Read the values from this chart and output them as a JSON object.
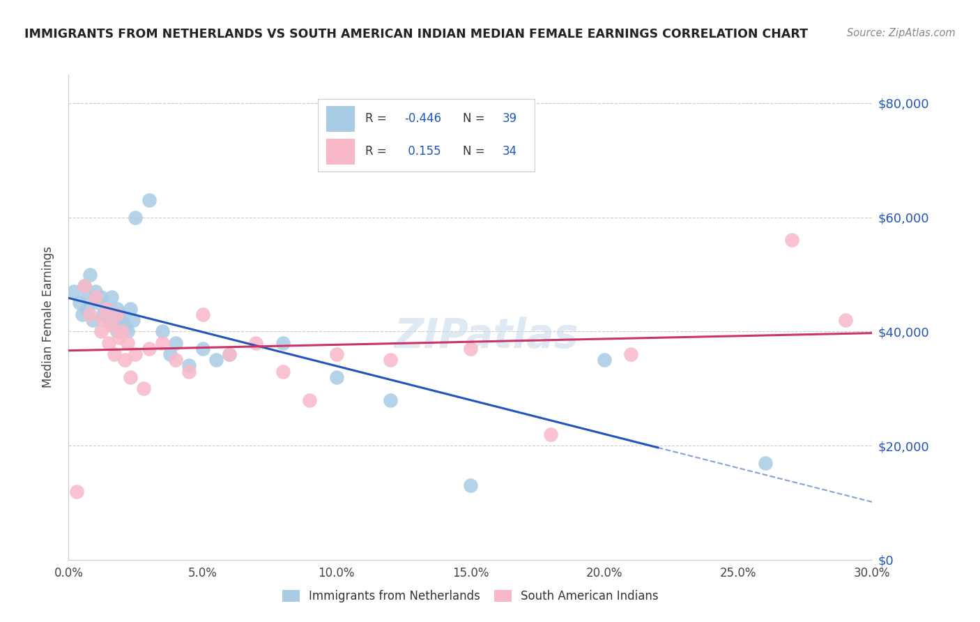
{
  "title": "IMMIGRANTS FROM NETHERLANDS VS SOUTH AMERICAN INDIAN MEDIAN FEMALE EARNINGS CORRELATION CHART",
  "source": "Source: ZipAtlas.com",
  "ylabel": "Median Female Earnings",
  "xlim": [
    0.0,
    0.3
  ],
  "ylim": [
    0,
    85000
  ],
  "xtick_labels": [
    "0.0%",
    "5.0%",
    "10.0%",
    "15.0%",
    "20.0%",
    "25.0%",
    "30.0%"
  ],
  "xtick_vals": [
    0.0,
    0.05,
    0.1,
    0.15,
    0.2,
    0.25,
    0.3
  ],
  "ytick_vals": [
    0,
    20000,
    40000,
    60000,
    80000
  ],
  "ytick_right_labels": [
    "$0",
    "$20,000",
    "$40,000",
    "$60,000",
    "$80,000"
  ],
  "watermark": "ZIPatlas",
  "color_blue": "#a8cce4",
  "color_pink": "#f9b8c8",
  "line_blue": "#2255bb",
  "line_pink": "#cc3366",
  "legend_text_color": "#2255bb",
  "legend_label_color": "#333333",
  "blue_x": [
    0.002,
    0.004,
    0.005,
    0.006,
    0.007,
    0.007,
    0.008,
    0.009,
    0.01,
    0.011,
    0.012,
    0.013,
    0.014,
    0.015,
    0.016,
    0.017,
    0.018,
    0.018,
    0.019,
    0.02,
    0.021,
    0.022,
    0.023,
    0.024,
    0.025,
    0.03,
    0.035,
    0.038,
    0.04,
    0.045,
    0.05,
    0.055,
    0.06,
    0.08,
    0.1,
    0.12,
    0.15,
    0.2,
    0.26
  ],
  "blue_y": [
    47000,
    45000,
    43000,
    48000,
    46000,
    44000,
    50000,
    42000,
    47000,
    45000,
    46000,
    43000,
    44000,
    42000,
    46000,
    41000,
    44000,
    40000,
    43000,
    42000,
    41000,
    40000,
    44000,
    42000,
    60000,
    63000,
    40000,
    36000,
    38000,
    34000,
    37000,
    35000,
    36000,
    38000,
    32000,
    28000,
    13000,
    35000,
    17000
  ],
  "pink_x": [
    0.003,
    0.006,
    0.008,
    0.01,
    0.012,
    0.013,
    0.014,
    0.015,
    0.016,
    0.017,
    0.018,
    0.019,
    0.02,
    0.021,
    0.022,
    0.023,
    0.025,
    0.028,
    0.03,
    0.035,
    0.04,
    0.045,
    0.05,
    0.06,
    0.07,
    0.08,
    0.09,
    0.1,
    0.12,
    0.15,
    0.18,
    0.21,
    0.27,
    0.29
  ],
  "pink_y": [
    12000,
    48000,
    43000,
    46000,
    40000,
    42000,
    44000,
    38000,
    41000,
    36000,
    43000,
    39000,
    40000,
    35000,
    38000,
    32000,
    36000,
    30000,
    37000,
    38000,
    35000,
    33000,
    43000,
    36000,
    38000,
    33000,
    28000,
    36000,
    35000,
    37000,
    22000,
    36000,
    56000,
    42000
  ]
}
